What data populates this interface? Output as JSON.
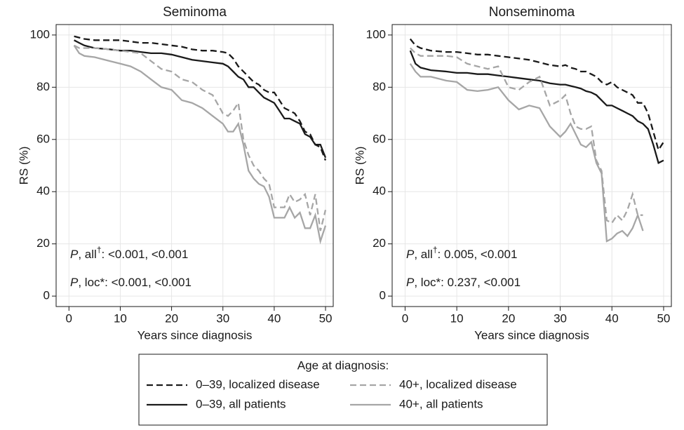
{
  "chart_data": [
    {
      "type": "line",
      "title": "Seminoma",
      "xlabel": "Years since diagnosis",
      "ylabel": "RS (%)",
      "xlim": [
        -2.5,
        51.5
      ],
      "ylim": [
        -4,
        104
      ],
      "xticks": [
        0,
        10,
        20,
        30,
        40,
        50
      ],
      "yticks": [
        0,
        20,
        40,
        60,
        80,
        100
      ],
      "grid": true,
      "legend": {
        "title": "Age at diagnosis:"
      },
      "annotations": [
        {
          "parts": [
            "P",
            ", all",
            "†",
            ": <0.001, <0.001"
          ]
        },
        {
          "parts": [
            "P",
            ", loc*: <0.001, <0.001"
          ]
        }
      ],
      "x": [
        1,
        2,
        3,
        5,
        8,
        10,
        12,
        14,
        16,
        18,
        20,
        22,
        24,
        26,
        28,
        30,
        31,
        32,
        33,
        34,
        35,
        36,
        37,
        38,
        39,
        40,
        41,
        42,
        43,
        44,
        45,
        46,
        47,
        48,
        49,
        50
      ],
      "series": [
        {
          "name": "0–39, localized disease",
          "color": "#1a1a1a",
          "dashed": true,
          "values": [
            99.5,
            99,
            98.5,
            98,
            98,
            98,
            97.5,
            97,
            97,
            96.5,
            96,
            95.5,
            94.5,
            94,
            94,
            93.5,
            93,
            91,
            88,
            86,
            84,
            82,
            81,
            79,
            78,
            78,
            75,
            72,
            71,
            70,
            67,
            63,
            62,
            58,
            57,
            52
          ]
        },
        {
          "name": "0–39, all patients",
          "color": "#1a1a1a",
          "dashed": false,
          "values": [
            98,
            97,
            96,
            95,
            94.5,
            94,
            94,
            93.5,
            93,
            93,
            92.5,
            91.5,
            90.5,
            90,
            89.5,
            89,
            88,
            86,
            84,
            83,
            80,
            80,
            78,
            76,
            75,
            74,
            71,
            68,
            68,
            67,
            66,
            62,
            61,
            58,
            58,
            53
          ]
        },
        {
          "name": "40+, localized disease",
          "color": "#a6a6a6",
          "dashed": true,
          "values": [
            96,
            95,
            95,
            95,
            94.5,
            94,
            93.5,
            93,
            90,
            87,
            86,
            83,
            82,
            79,
            77,
            70,
            69,
            71,
            74,
            60,
            54,
            50,
            48,
            45,
            43,
            34,
            34,
            34,
            39,
            36,
            37,
            39,
            31,
            39,
            25,
            33
          ]
        },
        {
          "name": "40+, all patients",
          "color": "#a6a6a6",
          "dashed": false,
          "values": [
            96,
            93,
            92,
            91.5,
            90,
            89,
            88,
            86,
            83,
            80,
            79,
            75,
            74,
            72,
            69,
            66,
            63,
            63,
            66,
            58,
            48,
            45,
            43,
            42,
            38,
            30,
            30,
            30,
            34,
            30,
            32,
            26,
            26,
            31,
            21,
            27
          ]
        }
      ]
    },
    {
      "type": "line",
      "title": "Nonseminoma",
      "xlabel": "Years since diagnosis",
      "ylabel": "RS (%)",
      "xlim": [
        -2.5,
        51.5
      ],
      "ylim": [
        -4,
        104
      ],
      "xticks": [
        0,
        10,
        20,
        30,
        40,
        50
      ],
      "yticks": [
        0,
        20,
        40,
        60,
        80,
        100
      ],
      "grid": true,
      "annotations": [
        {
          "parts": [
            "P",
            ", all",
            "†",
            ": 0.005, <0.001"
          ]
        },
        {
          "parts": [
            "P",
            ", loc*: 0.237, <0.001"
          ]
        }
      ],
      "x": [
        1,
        2,
        3,
        5,
        8,
        10,
        12,
        14,
        16,
        18,
        20,
        22,
        24,
        26,
        28,
        30,
        31,
        32,
        33,
        34,
        35,
        36,
        37,
        38,
        39,
        40,
        41,
        42,
        43,
        44,
        45,
        46,
        47,
        48,
        49,
        50
      ],
      "series": [
        {
          "color": "#1a1a1a",
          "dashed": true,
          "values": [
            98.5,
            96,
            95,
            94,
            93.5,
            93.5,
            93,
            92.5,
            92.5,
            92,
            91.5,
            91,
            90.5,
            89.5,
            88.5,
            88,
            88.5,
            87.5,
            87,
            86,
            86,
            85,
            84,
            82,
            81,
            82,
            80,
            79,
            78,
            77,
            74,
            74,
            70,
            63,
            56,
            59
          ]
        },
        {
          "color": "#1a1a1a",
          "dashed": false,
          "values": [
            94,
            89,
            87.5,
            86.5,
            86,
            85.5,
            85.5,
            85,
            85,
            84.5,
            84,
            83.5,
            83,
            82.5,
            81.5,
            81,
            81,
            80.5,
            80,
            79.5,
            78.5,
            78,
            77,
            75,
            73,
            73,
            72,
            71,
            70,
            69,
            67,
            66,
            64,
            58,
            51,
            52
          ]
        },
        {
          "color": "#a6a6a6",
          "dashed": true,
          "values": [
            95,
            93,
            92,
            92,
            92,
            91.5,
            89,
            88,
            87,
            88,
            80,
            79,
            82,
            84,
            73,
            75,
            77,
            70,
            65,
            64,
            64,
            65,
            52,
            48,
            29,
            28,
            31,
            29,
            33,
            39,
            31,
            31,
            null,
            null,
            null,
            null
          ]
        },
        {
          "color": "#a6a6a6",
          "dashed": false,
          "values": [
            89,
            86,
            84,
            84,
            82.5,
            82,
            79,
            78.5,
            79,
            80,
            75,
            71.5,
            73,
            72,
            65,
            61,
            63,
            66,
            62,
            58,
            57,
            59,
            51,
            47,
            21,
            22,
            24,
            25,
            23,
            26,
            31,
            25,
            null,
            null,
            null,
            null
          ]
        }
      ]
    }
  ]
}
